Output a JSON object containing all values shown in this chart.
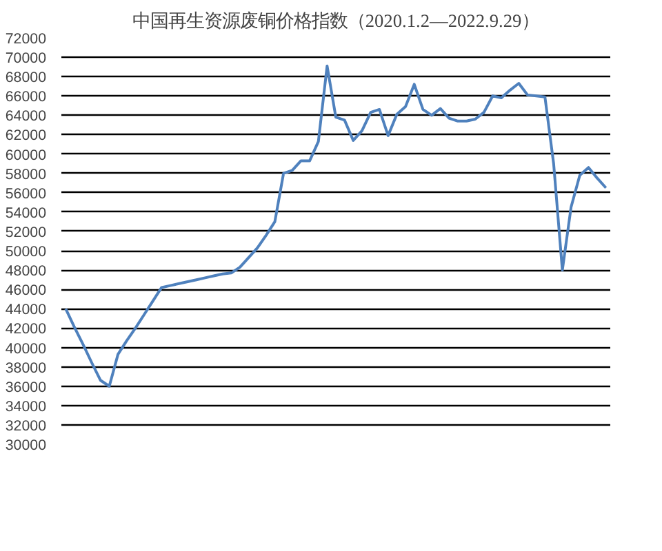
{
  "chart_data": {
    "type": "line",
    "title": "中国再生资源废铜价格指数（2020.1.2—2022.9.29）",
    "categories": [
      null,
      null,
      null,
      null,
      null,
      null,
      null,
      null,
      null,
      null,
      null,
      null,
      null,
      null,
      null,
      null,
      null,
      null,
      null,
      null,
      null,
      null,
      null,
      null,
      null,
      null,
      null,
      null,
      null,
      null,
      null,
      null,
      null,
      null,
      null,
      null,
      null,
      null,
      null,
      null,
      null,
      null,
      null,
      null,
      null,
      null,
      null,
      null,
      null,
      null,
      null,
      null,
      null,
      null,
      null,
      null,
      null,
      null,
      null,
      null,
      null,
      null,
      null
    ],
    "series": [
      {
        "color": "#4f81bd",
        "values": [
          44000,
          42100,
          40300,
          38400,
          36600,
          36000,
          39300,
          40700,
          42000,
          43400,
          44800,
          46200,
          46400,
          46600,
          46800,
          47000,
          47200,
          47400,
          47600,
          47700,
          48300,
          49300,
          50300,
          51600,
          53000,
          58000,
          58300,
          59300,
          59300,
          61300,
          69100,
          63800,
          63500,
          61400,
          62400,
          64300,
          64600,
          61900,
          64100,
          64900,
          67200,
          64600,
          64000,
          64700,
          63700,
          63400,
          63400,
          63600,
          64300,
          66000,
          65800,
          66600,
          67300,
          66100,
          66000,
          65900,
          59000,
          48000,
          54500,
          57800,
          58600,
          57500,
          56500
        ]
      }
    ],
    "ylim": [
      30000,
      72000
    ],
    "yticks": [
      30000,
      32000,
      34000,
      36000,
      38000,
      40000,
      42000,
      44000,
      46000,
      48000,
      50000,
      52000,
      54000,
      56000,
      58000,
      60000,
      62000,
      64000,
      66000,
      68000,
      70000,
      72000
    ],
    "tick_labels": "y",
    "grid": "y",
    "marker": "none",
    "line_style": "solid"
  }
}
